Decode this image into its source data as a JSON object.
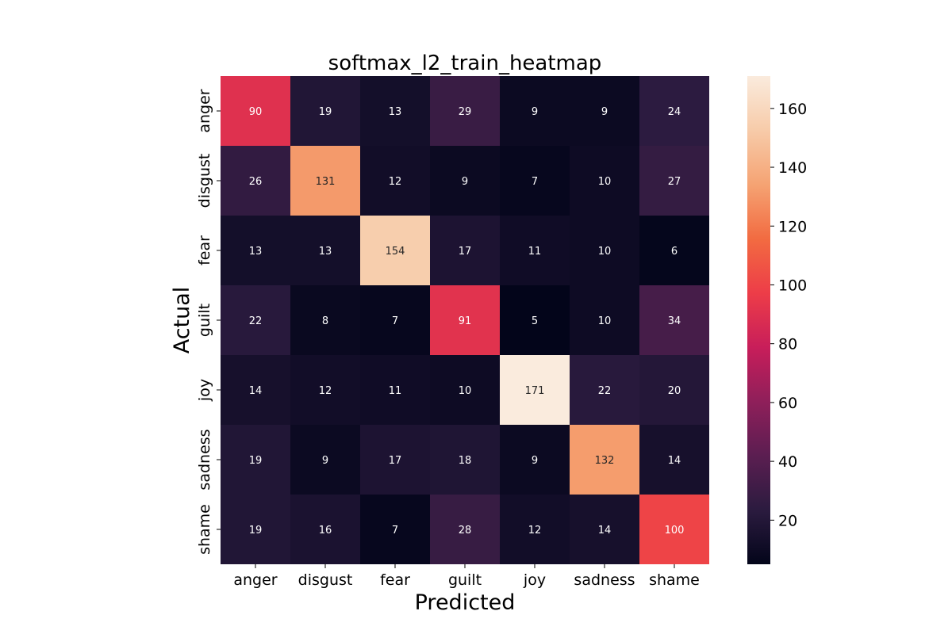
{
  "chart_data": {
    "type": "heatmap",
    "title": "softmax_l2_train_heatmap",
    "xlabel": "Predicted",
    "ylabel": "Actual",
    "x_categories": [
      "anger",
      "disgust",
      "fear",
      "guilt",
      "joy",
      "sadness",
      "shame"
    ],
    "y_categories": [
      "anger",
      "disgust",
      "fear",
      "guilt",
      "joy",
      "sadness",
      "shame"
    ],
    "values": [
      [
        90,
        19,
        13,
        29,
        9,
        9,
        24
      ],
      [
        26,
        131,
        12,
        9,
        7,
        10,
        27
      ],
      [
        13,
        13,
        154,
        17,
        11,
        10,
        6
      ],
      [
        22,
        8,
        7,
        91,
        5,
        10,
        34
      ],
      [
        14,
        12,
        11,
        10,
        171,
        22,
        20
      ],
      [
        19,
        9,
        17,
        18,
        9,
        132,
        14
      ],
      [
        19,
        16,
        7,
        28,
        12,
        14,
        100
      ]
    ],
    "colorbar": {
      "min": 5,
      "max": 171,
      "ticks": [
        20,
        40,
        60,
        80,
        100,
        120,
        140,
        160
      ]
    },
    "colormap": [
      "#03051a",
      "#2b1b3f",
      "#5b1e51",
      "#8f1f5a",
      "#c81e5a",
      "#ed3d48",
      "#f26b41",
      "#f5a373",
      "#f7cba9",
      "#faebdd"
    ]
  }
}
